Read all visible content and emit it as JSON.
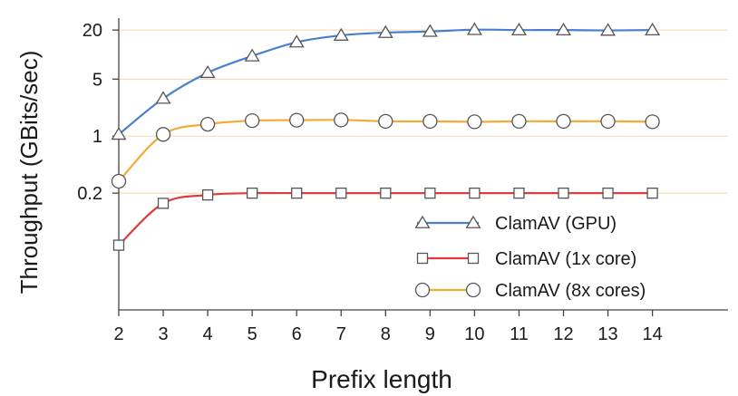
{
  "chart_data": {
    "type": "line",
    "title": "",
    "xlabel": "Prefix length",
    "ylabel": "Throughput (GBits/sec)",
    "x": [
      2,
      3,
      4,
      5,
      6,
      7,
      8,
      9,
      10,
      11,
      12,
      13,
      14
    ],
    "xticks": [
      "2",
      "3",
      "4",
      "5",
      "6",
      "7",
      "8",
      "9",
      "10",
      "11",
      "12",
      "13",
      "14"
    ],
    "xlim": [
      2,
      15.7
    ],
    "yscale": "log",
    "ylim": [
      0.0074,
      28
    ],
    "yticks": [
      {
        "value": 20,
        "label": "20"
      },
      {
        "value": 5,
        "label": "5"
      },
      {
        "value": 1,
        "label": "1"
      },
      {
        "value": 0.2,
        "label": "0.2"
      }
    ],
    "grid": "horizontal",
    "legend_position": "bottom-right",
    "series": [
      {
        "name": "ClamAV (GPU)",
        "marker": "triangle",
        "color": "#4a7fd0",
        "values": [
          1.05,
          2.9,
          6.0,
          9.6,
          14.2,
          17.2,
          18.6,
          19.2,
          20.2,
          20.0,
          20.0,
          19.8,
          20.0
        ]
      },
      {
        "name": "ClamAV (1x core)",
        "marker": "square",
        "color": "#e03c3c",
        "values": [
          0.046,
          0.15,
          0.19,
          0.2,
          0.2,
          0.2,
          0.2,
          0.2,
          0.2,
          0.2,
          0.2,
          0.2,
          0.2
        ]
      },
      {
        "name": "ClamAV (8x cores)",
        "marker": "circle",
        "color": "#f2ac35",
        "values": [
          0.28,
          1.05,
          1.4,
          1.55,
          1.57,
          1.58,
          1.52,
          1.52,
          1.5,
          1.52,
          1.52,
          1.52,
          1.5
        ]
      }
    ]
  }
}
